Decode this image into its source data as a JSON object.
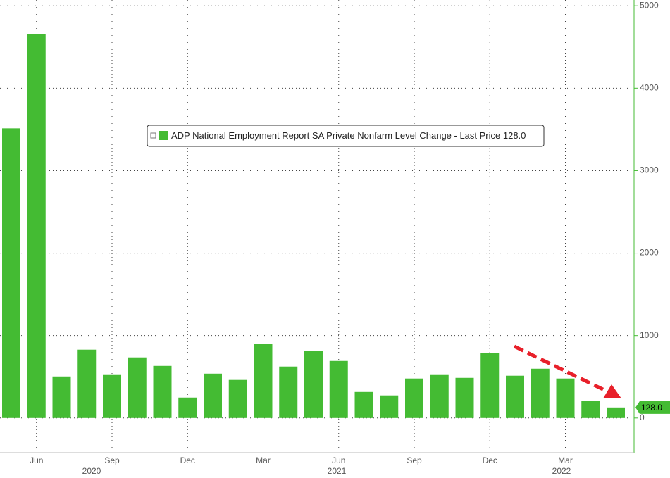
{
  "chart_data": {
    "type": "bar",
    "legend": "ADP National Employment Report SA Private Nonfarm Level Change - Last Price 128.0",
    "categories": [
      null,
      "Jun",
      null,
      null,
      "Sep",
      null,
      null,
      "Dec",
      null,
      null,
      "Mar",
      null,
      null,
      "Jun",
      null,
      null,
      "Sep",
      null,
      null,
      "Dec",
      null,
      null,
      "Mar",
      null,
      null
    ],
    "years": [
      "2020",
      "2021",
      "2022"
    ],
    "values": [
      3513,
      4658,
      504,
      829,
      530,
      735,
      632,
      248,
      538,
      462,
      897,
      624,
      812,
      692,
      316,
      274,
      479,
      530,
      487,
      786,
      513,
      598,
      479,
      205,
      128
    ],
    "last_value_label": "128.0",
    "color": "#44bb33",
    "ylim": [
      -420,
      5070
    ],
    "yticks": [
      0,
      1000,
      2000,
      3000,
      4000,
      5000
    ],
    "grid": true
  }
}
